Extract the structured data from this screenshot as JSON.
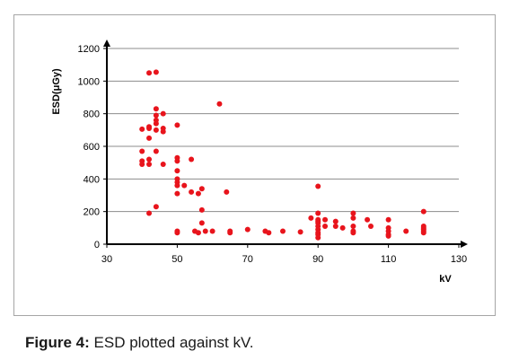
{
  "caption": {
    "label": "Figure 4:",
    "text": " ESD plotted against kV."
  },
  "chart_data": {
    "type": "scatter",
    "title": "",
    "xlabel": "kV",
    "ylabel": "ESD(μGy)",
    "xlim": [
      30,
      130
    ],
    "ylim": [
      0,
      1200
    ],
    "xticks": [
      30,
      50,
      70,
      90,
      110,
      130
    ],
    "yticks": [
      0,
      200,
      400,
      600,
      800,
      1000,
      1200
    ],
    "grid": "horizontal",
    "legend": "none",
    "marker_color": "#e8141c",
    "points": [
      [
        40,
        705
      ],
      [
        40,
        570
      ],
      [
        40,
        510
      ],
      [
        40,
        490
      ],
      [
        42,
        1050
      ],
      [
        42,
        720
      ],
      [
        42,
        710
      ],
      [
        42,
        650
      ],
      [
        42,
        520
      ],
      [
        42,
        490
      ],
      [
        42,
        190
      ],
      [
        44,
        1055
      ],
      [
        44,
        830
      ],
      [
        44,
        790
      ],
      [
        44,
        760
      ],
      [
        44,
        740
      ],
      [
        44,
        700
      ],
      [
        44,
        570
      ],
      [
        44,
        230
      ],
      [
        46,
        800
      ],
      [
        46,
        710
      ],
      [
        46,
        690
      ],
      [
        46,
        490
      ],
      [
        50,
        730
      ],
      [
        50,
        530
      ],
      [
        50,
        510
      ],
      [
        50,
        450
      ],
      [
        50,
        400
      ],
      [
        50,
        380
      ],
      [
        50,
        360
      ],
      [
        50,
        310
      ],
      [
        50,
        80
      ],
      [
        50,
        70
      ],
      [
        52,
        360
      ],
      [
        54,
        520
      ],
      [
        54,
        320
      ],
      [
        55,
        80
      ],
      [
        56,
        310
      ],
      [
        56,
        70
      ],
      [
        57,
        340
      ],
      [
        57,
        210
      ],
      [
        57,
        130
      ],
      [
        58,
        80
      ],
      [
        60,
        80
      ],
      [
        62,
        860
      ],
      [
        64,
        320
      ],
      [
        65,
        80
      ],
      [
        65,
        70
      ],
      [
        70,
        90
      ],
      [
        75,
        80
      ],
      [
        76,
        70
      ],
      [
        80,
        80
      ],
      [
        85,
        75
      ],
      [
        88,
        160
      ],
      [
        90,
        355
      ],
      [
        90,
        190
      ],
      [
        90,
        150
      ],
      [
        90,
        140
      ],
      [
        90,
        130
      ],
      [
        90,
        110
      ],
      [
        90,
        90
      ],
      [
        90,
        70
      ],
      [
        90,
        60
      ],
      [
        90,
        40
      ],
      [
        92,
        150
      ],
      [
        92,
        110
      ],
      [
        95,
        140
      ],
      [
        95,
        110
      ],
      [
        97,
        100
      ],
      [
        100,
        190
      ],
      [
        100,
        160
      ],
      [
        100,
        110
      ],
      [
        100,
        80
      ],
      [
        100,
        70
      ],
      [
        104,
        150
      ],
      [
        105,
        110
      ],
      [
        110,
        150
      ],
      [
        110,
        100
      ],
      [
        110,
        80
      ],
      [
        110,
        60
      ],
      [
        110,
        50
      ],
      [
        115,
        80
      ],
      [
        120,
        200
      ],
      [
        120,
        110
      ],
      [
        120,
        100
      ],
      [
        120,
        90
      ],
      [
        120,
        80
      ],
      [
        120,
        70
      ]
    ]
  }
}
